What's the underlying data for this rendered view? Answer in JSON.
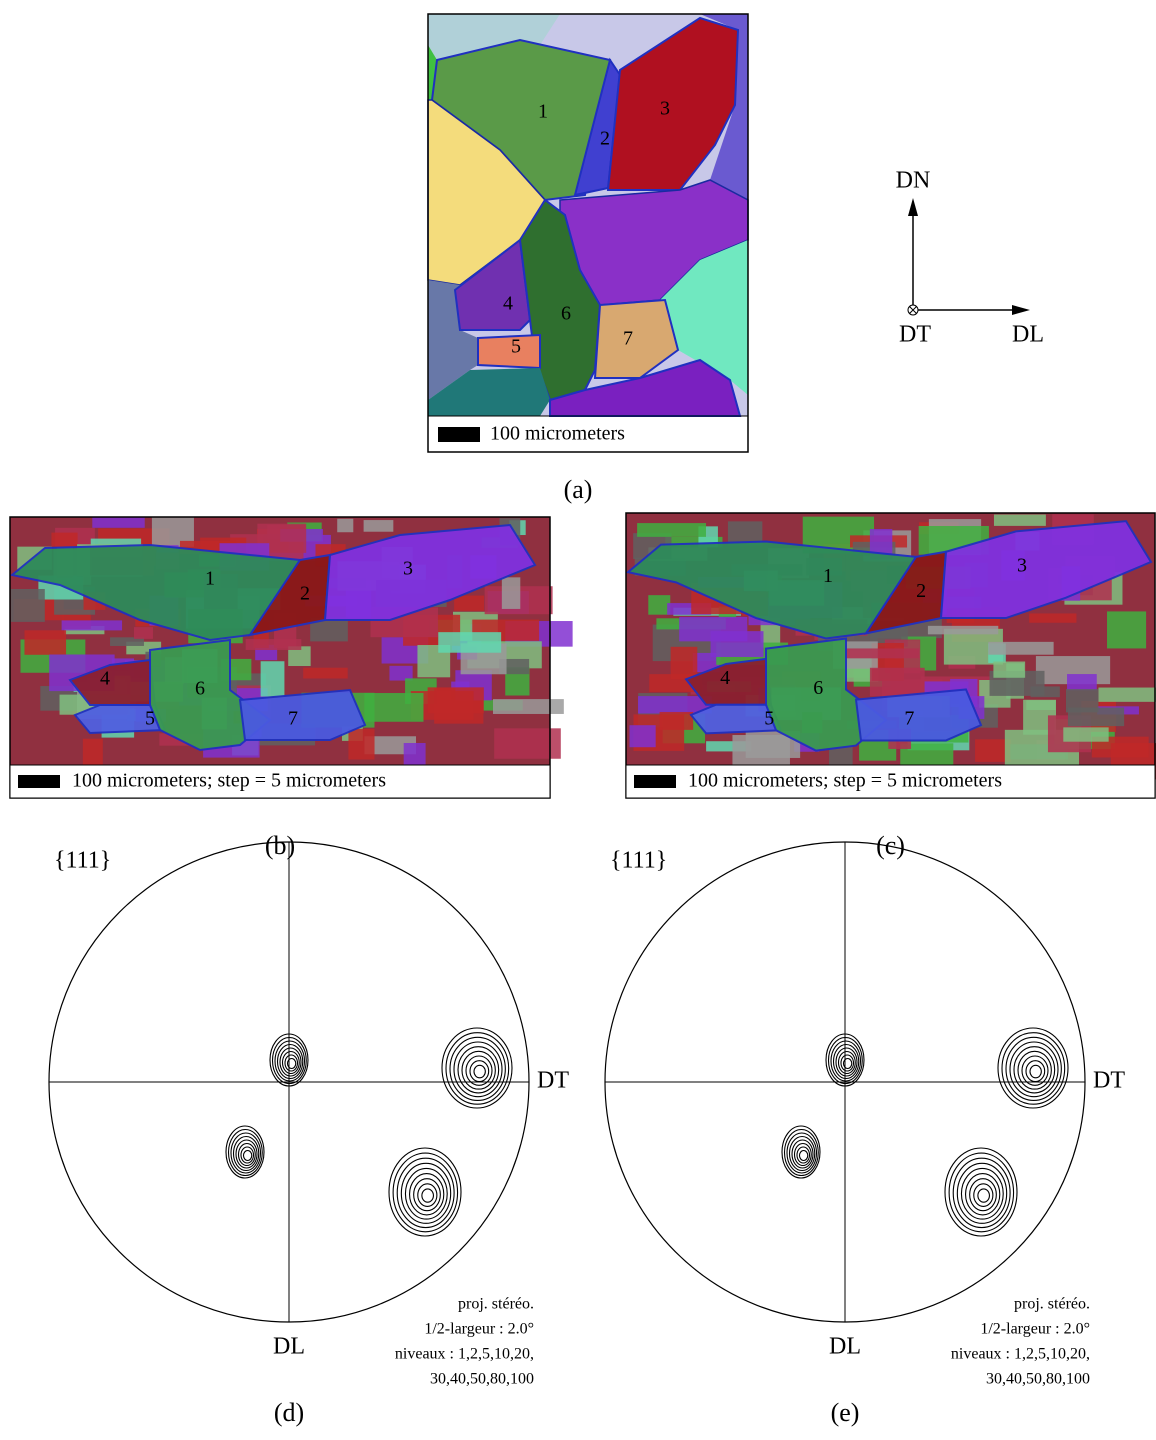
{
  "axes": {
    "dn": "DN",
    "dt": "DT",
    "dl": "DL"
  },
  "panels": [
    {
      "caption": "(a)",
      "grain_labels": [
        "1",
        "2",
        "3",
        "4",
        "5",
        "6",
        "7"
      ],
      "scale_bar": "100 micrometers"
    },
    {
      "caption": "(b)",
      "grain_labels": [
        "1",
        "2",
        "3",
        "4",
        "5",
        "6",
        "7"
      ],
      "scale_bar": "100 micrometers; step = 5 micrometers"
    },
    {
      "caption": "(c)",
      "grain_labels": [
        "1",
        "2",
        "3",
        "4",
        "5",
        "6",
        "7"
      ],
      "scale_bar": "100 micrometers; step = 5 micrometers"
    }
  ],
  "pole_figures": [
    {
      "caption": "(d)",
      "family": "{111}",
      "right_label": "DT",
      "bottom_label": "DL",
      "notes": [
        "proj. stéréo.",
        "1/2-largeur : 2.0°",
        "niveaux : 1,2,5,10,20,",
        "30,40,50,80,100"
      ]
    },
    {
      "caption": "(e)",
      "family": "{111}",
      "right_label": "DT",
      "bottom_label": "DL",
      "notes": [
        "proj. stéréo.",
        "1/2-largeur : 2.0°",
        "niveaux : 1,2,5,10,20,",
        "30,40,50,80,100"
      ]
    }
  ]
}
